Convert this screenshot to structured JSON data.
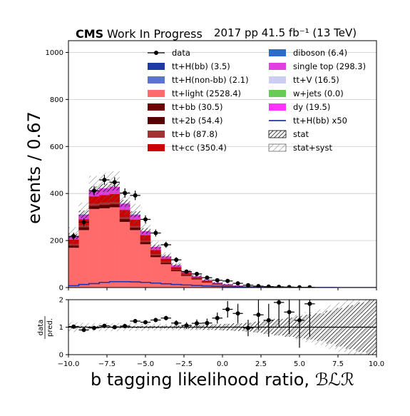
{
  "title": {
    "experiment": "CMS",
    "status": "Work In Progress",
    "lumi": "2017 pp 41.5 fb⁻¹ (13 TeV)"
  },
  "axes": {
    "xlabel": "b tagging likelihood ratio, ℬℒℛ",
    "ylabel": "events / 0.67",
    "ratio_ylabel_top": "data",
    "ratio_ylabel_bottom": "pred.",
    "xlim": [
      -10,
      10
    ],
    "ylim": [
      0,
      1050
    ],
    "ratio_ylim": [
      0,
      2
    ],
    "xticks": [
      "−10.0",
      "−7.5",
      "−5.0",
      "−2.5",
      "0.0",
      "2.5",
      "5.0",
      "7.5",
      "10.0"
    ],
    "yticks": [
      "0",
      "200",
      "400",
      "600",
      "800",
      "1000"
    ],
    "ratio_yticks": [
      "0",
      "1",
      "2"
    ]
  },
  "legend": {
    "left": [
      {
        "label": "data",
        "kind": "data",
        "color": "#000000"
      },
      {
        "label": "tt+H(bb) (3.5)",
        "kind": "box",
        "color": "#1f3aa6"
      },
      {
        "label": "tt+H(non-bb) (2.1)",
        "kind": "box",
        "color": "#5b74cf"
      },
      {
        "label": "tt+light (2528.4)",
        "kind": "box",
        "color": "#ff6b6b"
      },
      {
        "label": "tt+bb (30.5)",
        "kind": "box",
        "color": "#6a0000"
      },
      {
        "label": "tt+2b (54.4)",
        "kind": "box",
        "color": "#540000"
      },
      {
        "label": "tt+b (87.8)",
        "kind": "box",
        "color": "#a33333"
      },
      {
        "label": "tt+cc (350.4)",
        "kind": "box",
        "color": "#cc0000"
      }
    ],
    "right": [
      {
        "label": "diboson (6.4)",
        "kind": "box",
        "color": "#2e6bd1"
      },
      {
        "label": "single top (298.3)",
        "kind": "box",
        "color": "#e040e0"
      },
      {
        "label": "tt+V (16.5)",
        "kind": "box",
        "color": "#ccccf5"
      },
      {
        "label": "w+jets (0.0)",
        "kind": "box",
        "color": "#66cc55"
      },
      {
        "label": "dy (19.5)",
        "kind": "box",
        "color": "#ff33ff"
      },
      {
        "label": "tt+H(bb) x50",
        "kind": "line",
        "color": "#2233aa"
      },
      {
        "label": "stat",
        "kind": "hatch-dense",
        "color": "#000000"
      },
      {
        "label": "stat+syst",
        "kind": "hatch-light",
        "color": "#555555"
      }
    ]
  },
  "chart_data": {
    "type": "bar",
    "subtype": "stacked-histogram-with-ratio",
    "bin_edges": [
      -10.0,
      -9.33,
      -8.67,
      -8.0,
      -7.33,
      -6.67,
      -6.0,
      -5.33,
      -4.67,
      -4.0,
      -3.33,
      -2.67,
      -2.0,
      -1.33,
      -0.67,
      0.0,
      0.67,
      1.33,
      2.0,
      2.67,
      3.33,
      4.0,
      4.67,
      5.33,
      6.0,
      6.67,
      7.33,
      8.0,
      8.67,
      9.33,
      10.0
    ],
    "stack_order": [
      "tt+light",
      "tt+2b",
      "tt+bb",
      "tt+b",
      "tt+cc",
      "single top",
      "dy",
      "tt+V"
    ],
    "series": [
      {
        "name": "tt+light",
        "color": "#ff6b6b",
        "values": [
          170,
          245,
          335,
          338,
          342,
          280,
          245,
          185,
          130,
          100,
          70,
          50,
          35,
          22,
          14,
          9,
          5,
          3,
          2,
          1.2,
          0.8,
          0.5,
          0.4,
          0.3,
          0.2,
          0.1,
          0.1,
          0.1,
          0,
          0
        ]
      },
      {
        "name": "tt+2b",
        "color": "#540000",
        "values": [
          6,
          8,
          9,
          10,
          9,
          8,
          7,
          6,
          5,
          4,
          3,
          2.5,
          2,
          1.5,
          1,
          0.8,
          0.5,
          0.3,
          0.2,
          0.1,
          0.1,
          0.1,
          0,
          0,
          0,
          0,
          0,
          0,
          0,
          0
        ]
      },
      {
        "name": "tt+bb",
        "color": "#6a0000",
        "values": [
          3,
          4,
          4,
          4,
          4,
          3.5,
          3,
          3,
          2,
          2,
          1.5,
          1,
          1,
          0.8,
          0.5,
          0.3,
          0.2,
          0.1,
          0.1,
          0,
          0,
          0,
          0,
          0,
          0,
          0,
          0,
          0,
          0,
          0
        ]
      },
      {
        "name": "tt+b",
        "color": "#a33333",
        "values": [
          7,
          9,
          10,
          10,
          10,
          9,
          8,
          7,
          6,
          5,
          4,
          3,
          2,
          1.5,
          1,
          0.8,
          0.5,
          0.3,
          0.2,
          0.1,
          0,
          0,
          0,
          0,
          0,
          0,
          0,
          0,
          0,
          0
        ]
      },
      {
        "name": "tt+cc",
        "color": "#cc0000",
        "values": [
          18,
          25,
          30,
          32,
          33,
          30,
          26,
          22,
          17,
          12,
          9,
          6,
          4,
          3,
          2,
          1.2,
          0.8,
          0.5,
          0.3,
          0.2,
          0.1,
          0.1,
          0,
          0,
          0,
          0,
          0,
          0,
          0,
          0
        ]
      },
      {
        "name": "single top",
        "color": "#e040e0",
        "values": [
          12,
          18,
          22,
          26,
          28,
          25,
          20,
          16,
          12,
          9,
          7,
          5,
          4,
          3,
          2,
          1.5,
          1,
          0.7,
          0.5,
          0.3,
          0.2,
          0.1,
          0.1,
          0,
          0,
          0,
          0,
          0,
          0,
          0
        ]
      },
      {
        "name": "dy",
        "color": "#ff33ff",
        "values": [
          1,
          1.5,
          2,
          2,
          2,
          1.5,
          1.5,
          1,
          1,
          0.8,
          0.6,
          0.5,
          0.4,
          0.3,
          0.2,
          0.1,
          0.1,
          0,
          0,
          0,
          0,
          0,
          0,
          0,
          0,
          0,
          0,
          0,
          0,
          0
        ]
      },
      {
        "name": "tt+V",
        "color": "#ccccf5",
        "values": [
          1,
          1.5,
          1.5,
          2,
          2,
          1.5,
          1.5,
          1,
          1,
          0.8,
          0.6,
          0.5,
          0.4,
          0.3,
          0.2,
          0.2,
          0.1,
          0.1,
          0.1,
          0,
          0,
          0,
          0,
          0,
          0,
          0,
          0,
          0,
          0,
          0
        ]
      }
    ],
    "signal_x50": {
      "name": "tt+H(bb) x50",
      "color": "#2233aa",
      "values": [
        8,
        13,
        17,
        22,
        25,
        25,
        24,
        22,
        19,
        16,
        13,
        11,
        9,
        7,
        6,
        4.5,
        3.5,
        2.5,
        1.5,
        1,
        0.6,
        0.4,
        0.3,
        0.2,
        0.1,
        0.1,
        0,
        0,
        0,
        0
      ]
    },
    "data": {
      "name": "data",
      "values": [
        218,
        278,
        412,
        458,
        448,
        402,
        392,
        290,
        232,
        182,
        118,
        68,
        58,
        42,
        31,
        28,
        18,
        10,
        6,
        4,
        3,
        2,
        1,
        1,
        0,
        0,
        0,
        0,
        0,
        0
      ],
      "errors": [
        15,
        17,
        20,
        21,
        21,
        20,
        20,
        17,
        15,
        13,
        11,
        8,
        8,
        6.5,
        5.5,
        5.3,
        4.2,
        3.2,
        2.4,
        2,
        1.7,
        1.4,
        1,
        1,
        0,
        0,
        0,
        0,
        0,
        0
      ]
    },
    "stat_uncertainty_rel": [
      0.05,
      0.05,
      0.04,
      0.04,
      0.04,
      0.04,
      0.04,
      0.05,
      0.05,
      0.05,
      0.06,
      0.07,
      0.08,
      0.09,
      0.1,
      0.12,
      0.14,
      0.16,
      0.2,
      0.25,
      0.3,
      0.35,
      0.4,
      0.45,
      0.5,
      0.6,
      0.7,
      0.8,
      0.9,
      1.0
    ],
    "syst_uncertainty_rel": [
      0.18,
      0.16,
      0.15,
      0.15,
      0.15,
      0.14,
      0.14,
      0.14,
      0.13,
      0.12,
      0.12,
      0.12,
      0.12,
      0.12,
      0.12,
      0.13,
      0.14,
      0.15,
      0.2,
      0.25,
      0.3,
      0.35,
      0.45,
      0.55,
      0.65,
      0.8,
      0.9,
      1.0,
      1.0,
      1.0
    ],
    "ratio": {
      "values": [
        1.02,
        0.9,
        0.97,
        1.05,
        1.0,
        1.04,
        1.22,
        1.18,
        1.26,
        1.33,
        1.15,
        1.06,
        1.14,
        1.15,
        1.33,
        1.65,
        1.5,
        0.97,
        1.45,
        1.25,
        1.9,
        1.55,
        1.25,
        1.85,
        0.02,
        0.0,
        0,
        0,
        0,
        0
      ],
      "errors": [
        0.07,
        0.06,
        0.05,
        0.05,
        0.05,
        0.05,
        0.06,
        0.07,
        0.08,
        0.08,
        0.1,
        0.12,
        0.14,
        0.16,
        0.2,
        0.3,
        0.35,
        0.3,
        0.55,
        0.6,
        0.9,
        0.8,
        1.0,
        1.2,
        0,
        0,
        0,
        0,
        0,
        0
      ],
      "reference": 1.0
    },
    "grid": "horizontal",
    "legend_position": "top-center"
  }
}
